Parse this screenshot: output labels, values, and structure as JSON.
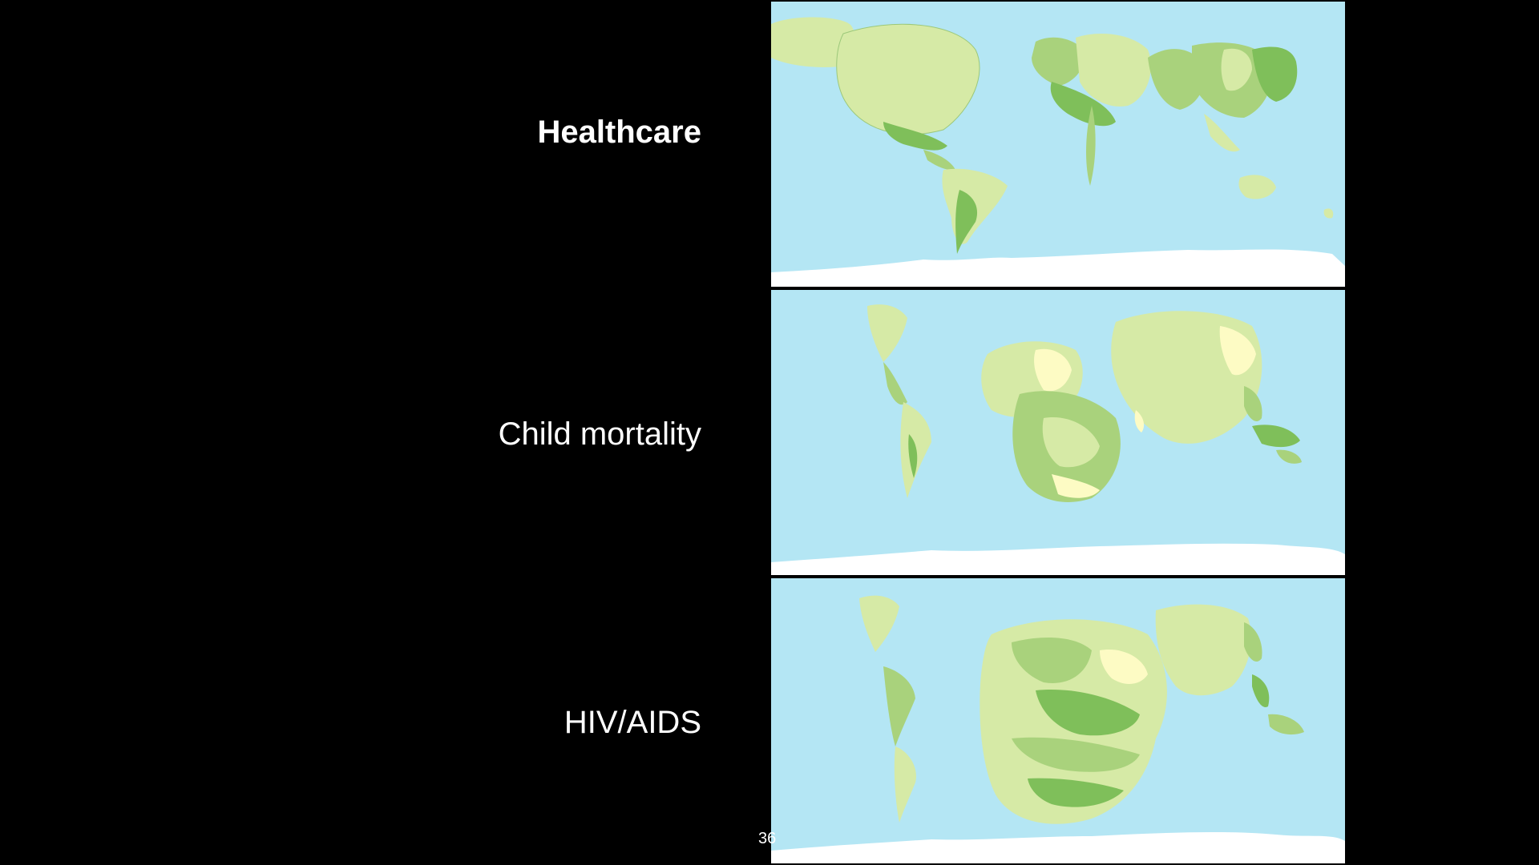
{
  "slide": {
    "number": "36",
    "rows": [
      {
        "label": "Healthcare",
        "map": "cartogram-healthcare",
        "emphasis": true
      },
      {
        "label": "Child mortality",
        "map": "cartogram-child-mortality",
        "emphasis": false
      },
      {
        "label": "HIV/AIDS",
        "map": "cartogram-hiv-aids",
        "emphasis": false
      }
    ]
  },
  "colors": {
    "background": "#000000",
    "ocean": "#b4e6f4",
    "land_light": "#d6eaa6",
    "land_mid": "#a9d27c",
    "land_dark": "#7fbf5a",
    "land_pale": "#fdfbc4",
    "ice": "#ffffff"
  }
}
